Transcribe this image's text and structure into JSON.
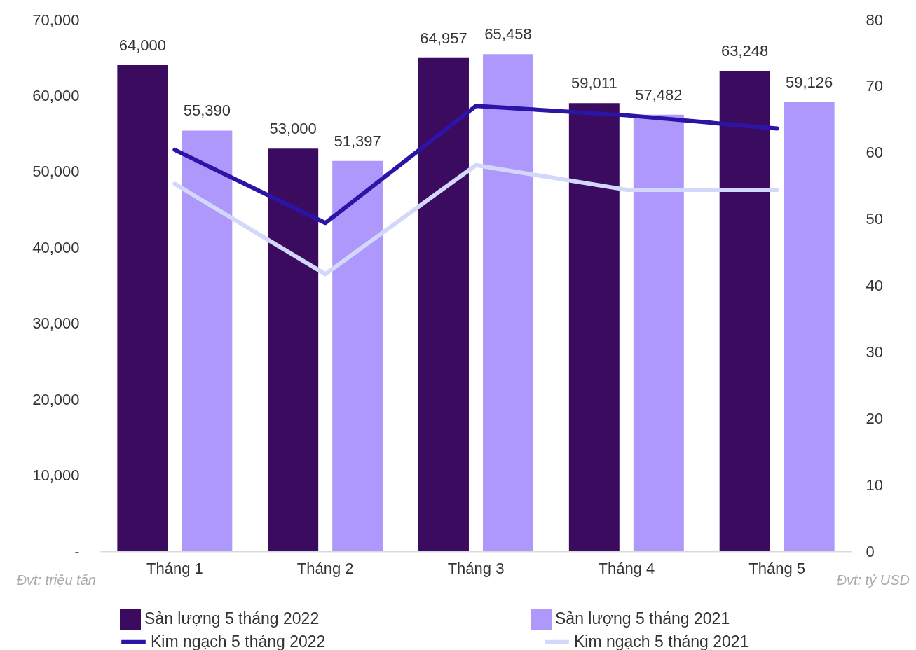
{
  "chart_data": {
    "type": "bar",
    "categories": [
      "Tháng 1",
      "Tháng 2",
      "Tháng 3",
      "Tháng 4",
      "Tháng 5"
    ],
    "series": [
      {
        "name": "Sản lượng 5 tháng 2022",
        "color": "#3a0b5e",
        "values": [
          64000,
          53000,
          64957,
          59011,
          63248
        ],
        "value_labels": [
          "64,000",
          "53,000",
          "64,957",
          "59,011",
          "63,248"
        ]
      },
      {
        "name": "Sản lượng 5 tháng 2021",
        "color": "#ae98fb",
        "values": [
          55390,
          51397,
          65458,
          57482,
          59126
        ],
        "value_labels": [
          "55,390",
          "51,397",
          "65,458",
          "57,482",
          "59,126"
        ]
      },
      {
        "name": "Kim ngạch 5 tháng 2022",
        "type": "line",
        "axis": "y2",
        "color": "#2c14a6",
        "values": [
          60.4,
          49.4,
          67.0,
          65.6,
          63.6
        ]
      },
      {
        "name": "Kim ngạch 5 tháng 2021",
        "type": "line",
        "axis": "y2",
        "color": "#d3d8fb",
        "values": [
          55.3,
          41.7,
          58.1,
          54.4,
          54.4
        ]
      }
    ],
    "ylabel": "Đvt: triệu tấn",
    "y2label": "Đvt: tỷ USD",
    "ylim": [
      0,
      70000
    ],
    "yticks": [
      {
        "value": 0,
        "label": "-"
      },
      {
        "value": 10000,
        "label": "10,000"
      },
      {
        "value": 20000,
        "label": "20,000"
      },
      {
        "value": 30000,
        "label": "30,000"
      },
      {
        "value": 40000,
        "label": "40,000"
      },
      {
        "value": 50000,
        "label": "50,000"
      },
      {
        "value": 60000,
        "label": "60,000"
      },
      {
        "value": 70000,
        "label": "70,000"
      }
    ],
    "y2lim": [
      0,
      80
    ],
    "y2ticks": [
      0,
      10,
      20,
      30,
      40,
      50,
      60,
      70,
      80
    ],
    "grid": false,
    "legend": "bottom",
    "line_style": "solid",
    "marker": "none"
  }
}
